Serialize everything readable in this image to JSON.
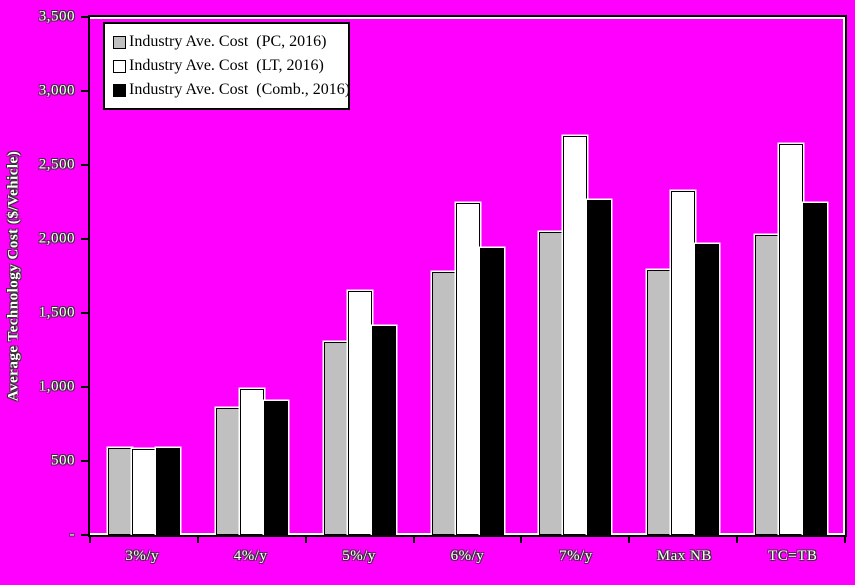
{
  "background_color": "#ff00ff",
  "chart_data": {
    "type": "bar",
    "title": "",
    "xlabel": "",
    "ylabel": "Average Technology Cost ($/Vehicle)",
    "ylim": [
      0,
      3500
    ],
    "ytick_step": 500,
    "ytick_labels_top_to_bottom": [
      "3,500",
      "3,000",
      "2,500",
      "2,000",
      "1,500",
      "1,000",
      "500",
      "-"
    ],
    "categories": [
      "3%/y",
      "4%/y",
      "5%/y",
      "6%/y",
      "7%/y",
      "Max NB",
      "TC=TB"
    ],
    "series": [
      {
        "name": "Industry Ave. Cost  (PC, 2016)",
        "color": "#c0c0c0",
        "values": [
          590,
          855,
          1305,
          1775,
          2050,
          1790,
          2030
        ]
      },
      {
        "name": "Industry Ave. Cost  (LT, 2016)",
        "color": "#ffffff",
        "values": [
          580,
          985,
          1650,
          2240,
          2695,
          2325,
          2640
        ]
      },
      {
        "name": "Industry Ave. Cost  (Comb., 2016)",
        "color": "#000000",
        "values": [
          585,
          905,
          1415,
          1940,
          2265,
          1965,
          2240
        ]
      }
    ],
    "legend_position": "top-left",
    "grid": false,
    "plot_background": "#ff00ff"
  }
}
